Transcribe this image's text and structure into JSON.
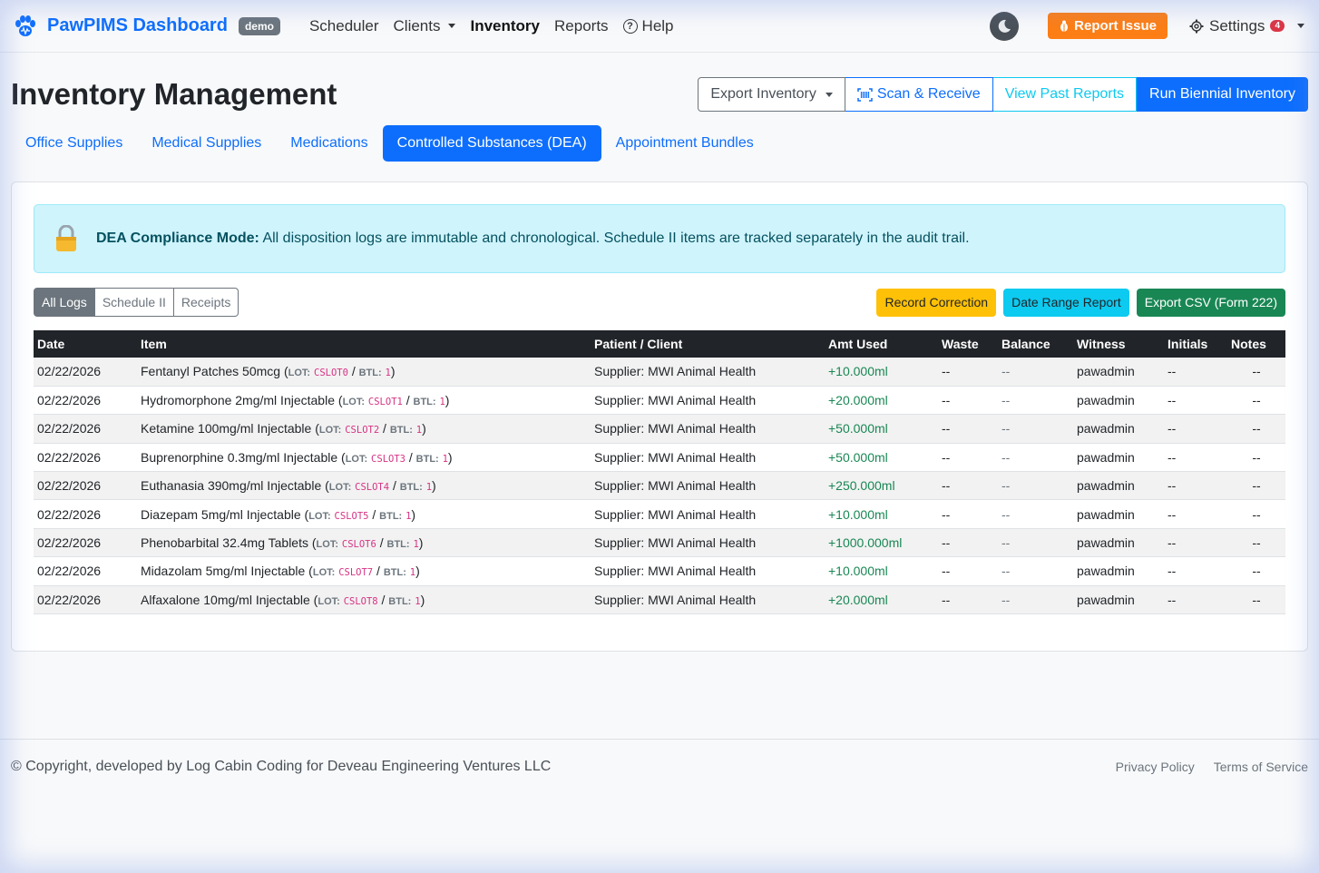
{
  "navbar": {
    "brand": "PawPIMS Dashboard",
    "badge": "demo",
    "links": [
      "Scheduler",
      "Clients",
      "Inventory",
      "Reports",
      "Help"
    ],
    "report_issue": "Report Issue",
    "settings": "Settings",
    "settings_count": "4"
  },
  "header": {
    "title": "Inventory Management",
    "export_inventory": "Export Inventory",
    "scan_receive": "Scan & Receive",
    "view_past_reports": "View Past Reports",
    "run_biennial": "Run Biennial Inventory"
  },
  "tabs": [
    "Office Supplies",
    "Medical Supplies",
    "Medications",
    "Controlled Substances (DEA)",
    "Appointment Bundles"
  ],
  "alert": {
    "title": "DEA Compliance Mode:",
    "text": "All disposition logs are immutable and chronological. Schedule II items are tracked separately in the audit trail."
  },
  "filters": [
    "All Logs",
    "Schedule II",
    "Receipts"
  ],
  "actions": {
    "record_correction": "Record Correction",
    "date_range_report": "Date Range Report",
    "export_csv": "Export CSV (Form 222)"
  },
  "table": {
    "headers": [
      "Date",
      "Item",
      "Patient / Client",
      "Amt Used",
      "Waste",
      "Balance",
      "Witness",
      "Initials",
      "Notes"
    ],
    "lot_label": "LOT:",
    "btl_label": "BTL:",
    "rows": [
      {
        "date": "02/22/2026",
        "item": "Fentanyl Patches 50mcg",
        "lot": "CSLOT0",
        "btl": "1",
        "client": "Supplier: MWI Animal Health",
        "amt": "+10.000ml",
        "waste": "--",
        "balance": "--",
        "witness": "pawadmin",
        "initials": "--",
        "notes": "--"
      },
      {
        "date": "02/22/2026",
        "item": "Hydromorphone 2mg/ml Injectable",
        "lot": "CSLOT1",
        "btl": "1",
        "client": "Supplier: MWI Animal Health",
        "amt": "+20.000ml",
        "waste": "--",
        "balance": "--",
        "witness": "pawadmin",
        "initials": "--",
        "notes": "--"
      },
      {
        "date": "02/22/2026",
        "item": "Ketamine 100mg/ml Injectable",
        "lot": "CSLOT2",
        "btl": "1",
        "client": "Supplier: MWI Animal Health",
        "amt": "+50.000ml",
        "waste": "--",
        "balance": "--",
        "witness": "pawadmin",
        "initials": "--",
        "notes": "--"
      },
      {
        "date": "02/22/2026",
        "item": "Buprenorphine 0.3mg/ml Injectable",
        "lot": "CSLOT3",
        "btl": "1",
        "client": "Supplier: MWI Animal Health",
        "amt": "+50.000ml",
        "waste": "--",
        "balance": "--",
        "witness": "pawadmin",
        "initials": "--",
        "notes": "--"
      },
      {
        "date": "02/22/2026",
        "item": "Euthanasia 390mg/ml Injectable",
        "lot": "CSLOT4",
        "btl": "1",
        "client": "Supplier: MWI Animal Health",
        "amt": "+250.000ml",
        "waste": "--",
        "balance": "--",
        "witness": "pawadmin",
        "initials": "--",
        "notes": "--"
      },
      {
        "date": "02/22/2026",
        "item": "Diazepam 5mg/ml Injectable",
        "lot": "CSLOT5",
        "btl": "1",
        "client": "Supplier: MWI Animal Health",
        "amt": "+10.000ml",
        "waste": "--",
        "balance": "--",
        "witness": "pawadmin",
        "initials": "--",
        "notes": "--"
      },
      {
        "date": "02/22/2026",
        "item": "Phenobarbital 32.4mg Tablets",
        "lot": "CSLOT6",
        "btl": "1",
        "client": "Supplier: MWI Animal Health",
        "amt": "+1000.000ml",
        "waste": "--",
        "balance": "--",
        "witness": "pawadmin",
        "initials": "--",
        "notes": "--"
      },
      {
        "date": "02/22/2026",
        "item": "Midazolam 5mg/ml Injectable",
        "lot": "CSLOT7",
        "btl": "1",
        "client": "Supplier: MWI Animal Health",
        "amt": "+10.000ml",
        "waste": "--",
        "balance": "--",
        "witness": "pawadmin",
        "initials": "--",
        "notes": "--"
      },
      {
        "date": "02/22/2026",
        "item": "Alfaxalone 10mg/ml Injectable",
        "lot": "CSLOT8",
        "btl": "1",
        "client": "Supplier: MWI Animal Health",
        "amt": "+20.000ml",
        "waste": "--",
        "balance": "--",
        "witness": "pawadmin",
        "initials": "--",
        "notes": "--"
      }
    ]
  },
  "footer": {
    "copyright": "© Copyright, developed by Log Cabin Coding for Deveau Engineering Ventures LLC",
    "privacy": "Privacy Policy",
    "terms": "Terms of Service"
  },
  "colors": {
    "primary": "#0d6efd",
    "info": "#0dcaf0",
    "warning": "#ffc107",
    "success": "#198754",
    "orange": "#fd7e14"
  }
}
